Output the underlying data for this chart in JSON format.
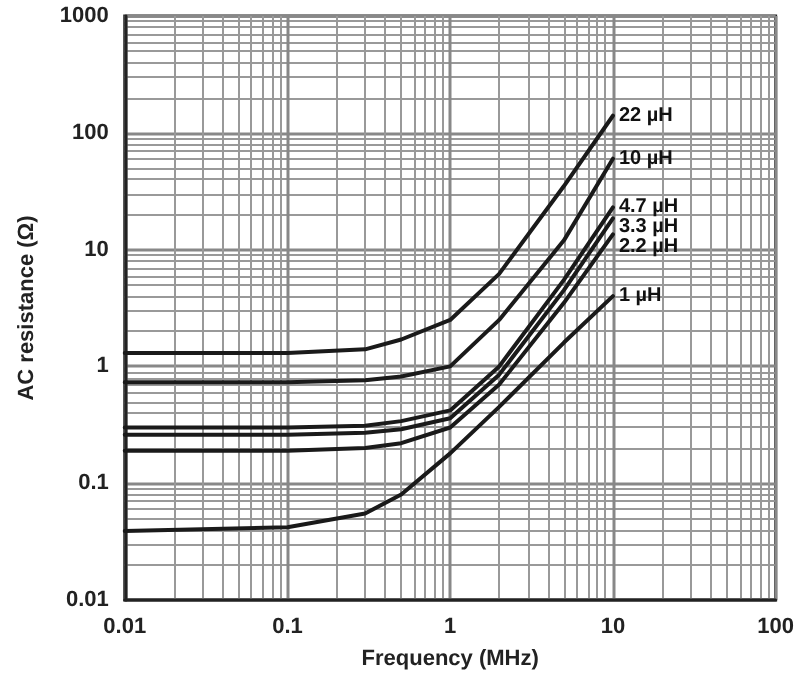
{
  "chart_data": {
    "type": "line",
    "xlabel": "Frequency (MHz)",
    "ylabel": "AC resistance (Ω)",
    "log": "xy",
    "grid": true,
    "legend": false,
    "marker": "none",
    "line_style": "solid",
    "xlim": [
      0.01,
      100
    ],
    "xticks": [
      0.01,
      0.1,
      1,
      10,
      100
    ],
    "ylim": [
      0.01,
      1000
    ],
    "yticks": [
      0.01,
      0.1,
      1,
      10,
      100,
      1000
    ],
    "x": [
      0.01,
      0.1,
      0.3,
      0.5,
      1,
      2,
      5,
      10
    ],
    "series": [
      {
        "name": "22 µH",
        "color": "#1a1a1a",
        "values": [
          1.3,
          1.3,
          1.4,
          1.7,
          2.5,
          6.2,
          35,
          140
        ]
      },
      {
        "name": "10 µH",
        "color": "#1a1a1a",
        "values": [
          0.73,
          0.73,
          0.76,
          0.82,
          1.0,
          2.5,
          12,
          60
        ]
      },
      {
        "name": "4.7 µH",
        "color": "#1a1a1a",
        "values": [
          0.3,
          0.3,
          0.31,
          0.34,
          0.42,
          1.0,
          5.5,
          23
        ]
      },
      {
        "name": "3.3 µH",
        "color": "#1a1a1a",
        "values": [
          0.26,
          0.26,
          0.27,
          0.29,
          0.36,
          0.85,
          4.5,
          18.5
        ]
      },
      {
        "name": "2.2 µH",
        "color": "#1a1a1a",
        "values": [
          0.19,
          0.19,
          0.2,
          0.22,
          0.3,
          0.7,
          3.5,
          13.5
        ]
      },
      {
        "name": "1 µH",
        "color": "#1a1a1a",
        "values": [
          0.039,
          0.042,
          0.055,
          0.08,
          0.18,
          0.45,
          1.6,
          4
        ]
      }
    ]
  }
}
